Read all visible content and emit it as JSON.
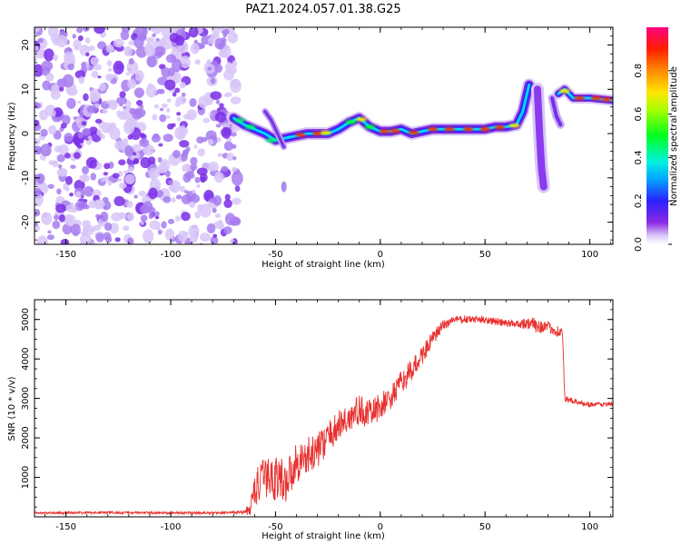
{
  "title": "PAZ1.2024.057.01.38.G25",
  "colors": {
    "snr_line": "#e8312f",
    "scatter_noise": "#9b7be6",
    "axis": "#000000"
  },
  "chart_data": [
    {
      "type": "heatmap",
      "name": "spectrogram",
      "xlabel": "Height of straight line (km)",
      "ylabel": "Frequency (Hz)",
      "xlim": [
        -165,
        111
      ],
      "ylim": [
        -25,
        24
      ],
      "x_ticks": [
        "-150",
        "-100",
        "-50",
        "0",
        "50",
        "100"
      ],
      "x_tick_values": [
        -150,
        -100,
        -50,
        0,
        50,
        100
      ],
      "y_ticks": [
        "20",
        "10",
        "0",
        "-10",
        "-20"
      ],
      "y_tick_values": [
        20,
        10,
        0,
        -10,
        -20
      ],
      "noise_region_x": [
        -165,
        -68
      ],
      "ridge": [
        {
          "x": -70,
          "y": 3.5
        },
        {
          "x": -65,
          "y": 2
        },
        {
          "x": -60,
          "y": 1
        },
        {
          "x": -55,
          "y": 0
        },
        {
          "x": -50,
          "y": -1.5
        },
        {
          "x": -45,
          "y": -1
        },
        {
          "x": -40,
          "y": -0.5
        },
        {
          "x": -35,
          "y": 0
        },
        {
          "x": -30,
          "y": 0
        },
        {
          "x": -25,
          "y": 0
        },
        {
          "x": -20,
          "y": 1
        },
        {
          "x": -15,
          "y": 2.5
        },
        {
          "x": -10,
          "y": 3.5
        },
        {
          "x": -5,
          "y": 1.5
        },
        {
          "x": 0,
          "y": 0.5
        },
        {
          "x": 5,
          "y": 0.5
        },
        {
          "x": 10,
          "y": 1
        },
        {
          "x": 15,
          "y": 0
        },
        {
          "x": 20,
          "y": 0.5
        },
        {
          "x": 25,
          "y": 1
        },
        {
          "x": 30,
          "y": 1
        },
        {
          "x": 35,
          "y": 1
        },
        {
          "x": 40,
          "y": 1
        },
        {
          "x": 45,
          "y": 1
        },
        {
          "x": 50,
          "y": 1
        },
        {
          "x": 55,
          "y": 1.5
        },
        {
          "x": 60,
          "y": 1.5
        },
        {
          "x": 65,
          "y": 2
        },
        {
          "x": 68,
          "y": 5
        },
        {
          "x": 70,
          "y": 9
        },
        {
          "x": 71,
          "y": 11
        }
      ],
      "ridge2": [
        {
          "x": 85,
          "y": 9
        },
        {
          "x": 88,
          "y": 10
        },
        {
          "x": 92,
          "y": 8
        },
        {
          "x": 100,
          "y": 8
        },
        {
          "x": 111,
          "y": 7.5
        }
      ],
      "branch1": [
        {
          "x": -55,
          "y": 5
        },
        {
          "x": -52,
          "y": 3
        },
        {
          "x": -48,
          "y": -1
        },
        {
          "x": -46,
          "y": -3
        }
      ],
      "branch2": [
        {
          "x": 75,
          "y": 10
        },
        {
          "x": 76,
          "y": 0
        },
        {
          "x": 77,
          "y": -8
        },
        {
          "x": 78,
          "y": -12
        }
      ],
      "branch3": [
        {
          "x": 82,
          "y": 8
        },
        {
          "x": 84,
          "y": 4
        },
        {
          "x": 86,
          "y": 2
        }
      ],
      "isolated_blob": {
        "x": -46,
        "y": -12
      },
      "colorbar": {
        "label": "Normalized spectral amplitude",
        "ticks": [
          "0.0",
          "0.2",
          "0.4",
          "0.6",
          "0.8"
        ],
        "tick_values": [
          0.0,
          0.2,
          0.4,
          0.6,
          0.8
        ],
        "range": [
          0,
          1
        ],
        "colormap": "gist_rainbow_reversed"
      }
    },
    {
      "type": "line",
      "name": "snr",
      "xlabel": "Height of straight line (km)",
      "ylabel": "SNR (10 * v/v)",
      "xlim": [
        -165,
        111
      ],
      "ylim": [
        0,
        5500
      ],
      "x_ticks": [
        "-150",
        "-100",
        "-50",
        "0",
        "50",
        "100"
      ],
      "x_tick_values": [
        -150,
        -100,
        -50,
        0,
        50,
        100
      ],
      "y_ticks": [
        "1000",
        "2000",
        "3000",
        "4000",
        "5000"
      ],
      "y_tick_values": [
        1000,
        2000,
        3000,
        4000,
        5000
      ],
      "x": [
        -165,
        -150,
        -130,
        -110,
        -90,
        -75,
        -65,
        -62,
        -60,
        -55,
        -50,
        -45,
        -40,
        -35,
        -30,
        -25,
        -20,
        -15,
        -10,
        -5,
        0,
        5,
        10,
        15,
        20,
        25,
        30,
        35,
        40,
        45,
        50,
        55,
        60,
        65,
        70,
        75,
        80,
        85,
        87,
        88,
        90,
        95,
        100,
        105,
        111
      ],
      "values": [
        100,
        100,
        110,
        100,
        100,
        100,
        120,
        200,
        700,
        1000,
        1000,
        900,
        1400,
        1500,
        1700,
        2000,
        2300,
        2500,
        2700,
        2600,
        2800,
        3000,
        3400,
        3700,
        4100,
        4500,
        4850,
        5000,
        5000,
        5000,
        5000,
        4950,
        4900,
        4900,
        4900,
        4850,
        4800,
        4700,
        4650,
        3000,
        2950,
        2900,
        2850,
        2850,
        2850
      ],
      "noise_amp": [
        30,
        30,
        30,
        30,
        30,
        30,
        40,
        200,
        500,
        500,
        600,
        550,
        500,
        500,
        450,
        400,
        400,
        400,
        400,
        350,
        350,
        300,
        300,
        300,
        250,
        200,
        150,
        100,
        100,
        100,
        100,
        100,
        100,
        100,
        150,
        200,
        150,
        150,
        150,
        80,
        80,
        60,
        60,
        60,
        60
      ]
    }
  ]
}
